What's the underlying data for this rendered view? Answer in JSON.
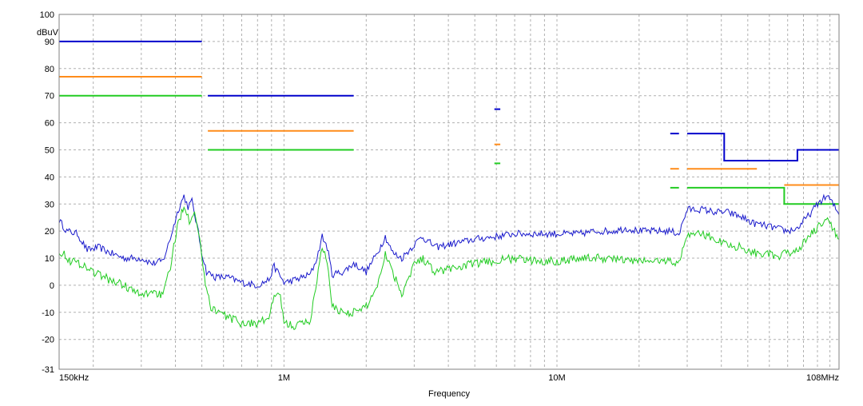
{
  "chart_data": {
    "type": "line",
    "title": "",
    "ylabel": "dBuV",
    "xlabel": "Frequency",
    "x_scale": "log",
    "xlim": [
      150000,
      108000000
    ],
    "ylim": [
      -31,
      100
    ],
    "grid": true,
    "y_ticks": [
      -31,
      -20,
      -10,
      0,
      10,
      20,
      30,
      40,
      50,
      60,
      70,
      80,
      90,
      100
    ],
    "x_tick_labels": [
      {
        "value": 150000,
        "label": "150kHz"
      },
      {
        "value": 1000000,
        "label": "1M"
      },
      {
        "value": 10000000,
        "label": "10M"
      },
      {
        "value": 108000000,
        "label": "108MHz"
      }
    ],
    "limit_lines": [
      {
        "color": "#0000cc",
        "points": [
          [
            150000,
            90
          ],
          [
            500000,
            90
          ]
        ]
      },
      {
        "color": "#ff8c1a",
        "points": [
          [
            150000,
            77
          ],
          [
            500000,
            77
          ]
        ]
      },
      {
        "color": "#22cc22",
        "points": [
          [
            150000,
            70
          ],
          [
            500000,
            70
          ]
        ]
      },
      {
        "color": "#0000cc",
        "points": [
          [
            526000,
            70
          ],
          [
            1800000,
            70
          ]
        ]
      },
      {
        "color": "#ff8c1a",
        "points": [
          [
            526000,
            57
          ],
          [
            1800000,
            57
          ]
        ]
      },
      {
        "color": "#22cc22",
        "points": [
          [
            526000,
            50
          ],
          [
            1800000,
            50
          ]
        ]
      },
      {
        "color": "#0000cc",
        "points": [
          [
            5900000,
            65
          ],
          [
            6200000,
            65
          ]
        ]
      },
      {
        "color": "#ff8c1a",
        "points": [
          [
            5900000,
            52
          ],
          [
            6200000,
            52
          ]
        ]
      },
      {
        "color": "#22cc22",
        "points": [
          [
            5900000,
            45
          ],
          [
            6200000,
            45
          ]
        ]
      },
      {
        "color": "#0000cc",
        "points": [
          [
            26000000,
            56
          ],
          [
            28000000,
            56
          ]
        ]
      },
      {
        "color": "#0000cc",
        "points": [
          [
            30000000,
            56
          ],
          [
            41000000,
            56
          ],
          [
            41000000,
            46
          ],
          [
            76000000,
            46
          ],
          [
            76000000,
            50
          ],
          [
            108000000,
            50
          ]
        ]
      },
      {
        "color": "#ff8c1a",
        "points": [
          [
            26000000,
            43
          ],
          [
            28000000,
            43
          ]
        ]
      },
      {
        "color": "#ff8c1a",
        "points": [
          [
            30000000,
            43
          ],
          [
            54000000,
            43
          ]
        ]
      },
      {
        "color": "#ff8c1a",
        "points": [
          [
            68000000,
            37
          ],
          [
            108000000,
            37
          ]
        ]
      },
      {
        "color": "#22cc22",
        "points": [
          [
            26000000,
            36
          ],
          [
            28000000,
            36
          ]
        ]
      },
      {
        "color": "#22cc22",
        "points": [
          [
            30000000,
            36
          ],
          [
            68000000,
            36
          ],
          [
            68000000,
            30
          ],
          [
            108000000,
            30
          ]
        ]
      }
    ],
    "series": [
      {
        "color": "#1a1acc",
        "points": [
          [
            150000,
            24
          ],
          [
            160000,
            20
          ],
          [
            175000,
            19
          ],
          [
            190000,
            13
          ],
          [
            210000,
            14
          ],
          [
            230000,
            12
          ],
          [
            260000,
            10
          ],
          [
            300000,
            10
          ],
          [
            330000,
            8
          ],
          [
            360000,
            9
          ],
          [
            380000,
            16
          ],
          [
            410000,
            28
          ],
          [
            430000,
            33
          ],
          [
            445000,
            29
          ],
          [
            460000,
            31
          ],
          [
            480000,
            22
          ],
          [
            500000,
            12
          ],
          [
            520000,
            5
          ],
          [
            560000,
            3
          ],
          [
            620000,
            3
          ],
          [
            700000,
            1
          ],
          [
            800000,
            0
          ],
          [
            880000,
            2
          ],
          [
            920000,
            7
          ],
          [
            960000,
            4
          ],
          [
            1000000,
            1
          ],
          [
            1100000,
            2
          ],
          [
            1250000,
            4
          ],
          [
            1320000,
            10
          ],
          [
            1380000,
            18
          ],
          [
            1440000,
            14
          ],
          [
            1500000,
            4
          ],
          [
            1650000,
            5
          ],
          [
            1800000,
            8
          ],
          [
            2000000,
            5
          ],
          [
            2200000,
            12
          ],
          [
            2350000,
            18
          ],
          [
            2500000,
            12
          ],
          [
            2700000,
            10
          ],
          [
            3000000,
            15
          ],
          [
            3200000,
            18
          ],
          [
            3600000,
            14
          ],
          [
            4000000,
            15
          ],
          [
            4500000,
            16
          ],
          [
            5000000,
            17
          ],
          [
            6000000,
            18
          ],
          [
            7000000,
            19
          ],
          [
            8000000,
            19
          ],
          [
            10000000,
            19
          ],
          [
            12000000,
            19
          ],
          [
            14000000,
            20
          ],
          [
            16000000,
            20
          ],
          [
            18000000,
            21
          ],
          [
            20000000,
            20
          ],
          [
            22000000,
            20
          ],
          [
            24000000,
            20
          ],
          [
            26000000,
            20
          ],
          [
            28000000,
            19
          ],
          [
            30000000,
            28
          ],
          [
            34000000,
            28
          ],
          [
            38000000,
            27
          ],
          [
            42000000,
            27
          ],
          [
            48000000,
            25
          ],
          [
            52000000,
            23
          ],
          [
            58000000,
            22
          ],
          [
            64000000,
            21
          ],
          [
            70000000,
            20
          ],
          [
            76000000,
            21
          ],
          [
            84000000,
            26
          ],
          [
            92000000,
            31
          ],
          [
            98000000,
            33
          ],
          [
            104000000,
            29
          ],
          [
            108000000,
            26
          ]
        ]
      },
      {
        "color": "#22cc22",
        "points": [
          [
            150000,
            13
          ],
          [
            165000,
            9
          ],
          [
            180000,
            8
          ],
          [
            200000,
            5
          ],
          [
            230000,
            2
          ],
          [
            260000,
            0
          ],
          [
            300000,
            -4
          ],
          [
            330000,
            -2
          ],
          [
            360000,
            -4
          ],
          [
            380000,
            5
          ],
          [
            410000,
            23
          ],
          [
            430000,
            30
          ],
          [
            450000,
            24
          ],
          [
            470000,
            28
          ],
          [
            490000,
            18
          ],
          [
            510000,
            3
          ],
          [
            540000,
            -8
          ],
          [
            600000,
            -11
          ],
          [
            700000,
            -14
          ],
          [
            800000,
            -14
          ],
          [
            880000,
            -12
          ],
          [
            920000,
            -5
          ],
          [
            960000,
            -2
          ],
          [
            1000000,
            -14
          ],
          [
            1100000,
            -15
          ],
          [
            1250000,
            -13
          ],
          [
            1320000,
            2
          ],
          [
            1380000,
            15
          ],
          [
            1440000,
            8
          ],
          [
            1500000,
            -8
          ],
          [
            1650000,
            -10
          ],
          [
            1800000,
            -10
          ],
          [
            2000000,
            -8
          ],
          [
            2200000,
            0
          ],
          [
            2350000,
            12
          ],
          [
            2500000,
            5
          ],
          [
            2700000,
            -3
          ],
          [
            3000000,
            8
          ],
          [
            3200000,
            10
          ],
          [
            3600000,
            5
          ],
          [
            4000000,
            6
          ],
          [
            4500000,
            7
          ],
          [
            5000000,
            8
          ],
          [
            6000000,
            9
          ],
          [
            7000000,
            10
          ],
          [
            8000000,
            9
          ],
          [
            10000000,
            9
          ],
          [
            12000000,
            10
          ],
          [
            14000000,
            10
          ],
          [
            16000000,
            10
          ],
          [
            18000000,
            9
          ],
          [
            20000000,
            9
          ],
          [
            22000000,
            9
          ],
          [
            24000000,
            9
          ],
          [
            26000000,
            9
          ],
          [
            28000000,
            8
          ],
          [
            30000000,
            19
          ],
          [
            34000000,
            19
          ],
          [
            38000000,
            17
          ],
          [
            42000000,
            15
          ],
          [
            48000000,
            14
          ],
          [
            52000000,
            12
          ],
          [
            58000000,
            12
          ],
          [
            64000000,
            10
          ],
          [
            70000000,
            12
          ],
          [
            76000000,
            13
          ],
          [
            84000000,
            18
          ],
          [
            92000000,
            22
          ],
          [
            98000000,
            24
          ],
          [
            104000000,
            20
          ],
          [
            108000000,
            17
          ]
        ]
      }
    ]
  }
}
